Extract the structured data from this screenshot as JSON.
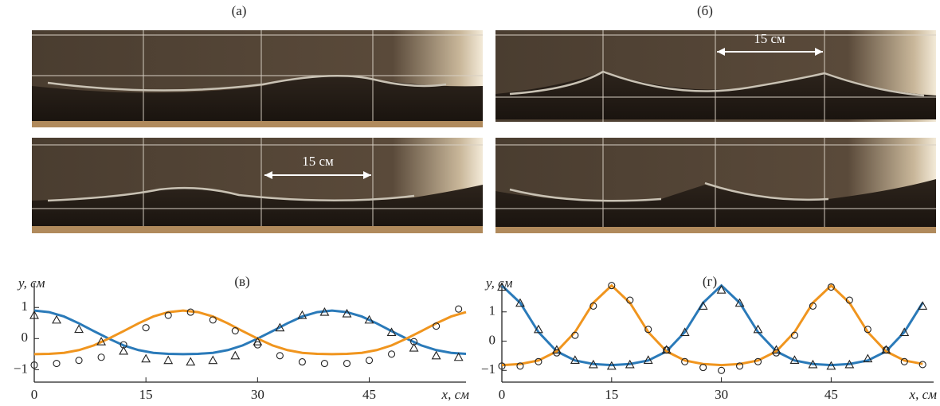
{
  "panels": [
    {
      "label": "(а)",
      "scale_label": "15 см"
    },
    {
      "label": "(б)",
      "scale_label": "15 см"
    }
  ],
  "chart_data": [
    {
      "type": "line",
      "title": "(в)",
      "y_label": "y, см",
      "x_label": "x, см",
      "xlim": [
        0,
        58
      ],
      "ylim": [
        -1.4,
        1.8
      ],
      "xticks": [
        0,
        15,
        30,
        45
      ],
      "yticks": [
        {
          "value": -1,
          "label": "−1"
        },
        0,
        1
      ],
      "series": [
        {
          "style": "line",
          "color": "#2a7ab9",
          "x": [
            0,
            2,
            4,
            6,
            8,
            10,
            12,
            14,
            16,
            18,
            20,
            22,
            24,
            26,
            28,
            30,
            32,
            34,
            36,
            38,
            40,
            42,
            44,
            46,
            48,
            50,
            52,
            54,
            56,
            58
          ],
          "values": [
            0.9,
            0.85,
            0.71,
            0.49,
            0.24,
            0,
            -0.22,
            -0.37,
            -0.46,
            -0.49,
            -0.5,
            -0.49,
            -0.46,
            -0.37,
            -0.22,
            0,
            0.24,
            0.49,
            0.71,
            0.85,
            0.9,
            0.85,
            0.71,
            0.49,
            0.24,
            0,
            -0.22,
            -0.37,
            -0.46,
            -0.49
          ]
        },
        {
          "style": "line",
          "color": "#f0951e",
          "x": [
            0,
            2,
            4,
            6,
            8,
            10,
            12,
            14,
            16,
            18,
            20,
            22,
            24,
            26,
            28,
            30,
            32,
            34,
            36,
            38,
            40,
            42,
            44,
            46,
            48,
            50,
            52,
            54,
            56,
            58
          ],
          "values": [
            -0.5,
            -0.49,
            -0.46,
            -0.37,
            -0.22,
            0,
            0.24,
            0.49,
            0.71,
            0.85,
            0.9,
            0.85,
            0.71,
            0.49,
            0.24,
            0,
            -0.22,
            -0.37,
            -0.46,
            -0.49,
            -0.5,
            -0.49,
            -0.46,
            -0.37,
            -0.22,
            0,
            0.24,
            0.49,
            0.71,
            0.85
          ]
        },
        {
          "style": "circle",
          "color": "#222222",
          "x": [
            0,
            3,
            6,
            9,
            12,
            15,
            18,
            21,
            24,
            27,
            30,
            33,
            36,
            39,
            42,
            45,
            48,
            51,
            54,
            57
          ],
          "values": [
            -0.85,
            -0.8,
            -0.7,
            -0.6,
            -0.2,
            0.35,
            0.75,
            0.85,
            0.6,
            0.25,
            -0.2,
            -0.55,
            -0.75,
            -0.8,
            -0.8,
            -0.7,
            -0.5,
            -0.1,
            0.4,
            0.95
          ]
        },
        {
          "style": "triangle",
          "color": "#222222",
          "x": [
            0,
            3,
            6,
            9,
            12,
            15,
            18,
            21,
            24,
            27,
            30,
            33,
            36,
            39,
            42,
            45,
            48,
            51,
            54,
            57
          ],
          "values": [
            0.75,
            0.6,
            0.3,
            -0.1,
            -0.4,
            -0.65,
            -0.7,
            -0.75,
            -0.7,
            -0.55,
            -0.1,
            0.35,
            0.75,
            0.85,
            0.8,
            0.6,
            0.2,
            -0.3,
            -0.55,
            -0.6
          ]
        }
      ]
    },
    {
      "type": "line",
      "title": "(г)",
      "y_label": "y, см",
      "x_label": "x, см",
      "xlim": [
        0,
        59
      ],
      "ylim": [
        -1.4,
        2.0
      ],
      "xticks": [
        0,
        15,
        30,
        45
      ],
      "yticks": [
        {
          "value": -1,
          "label": "−1"
        },
        0,
        1
      ],
      "series": [
        {
          "style": "line",
          "color": "#2a7ab9",
          "x": [
            0,
            2.5,
            5,
            7.5,
            10,
            12.5,
            15,
            17.5,
            20,
            22.5,
            25,
            27.5,
            30,
            32.5,
            35,
            37.5,
            40,
            42.5,
            45,
            47.5,
            50,
            52.5,
            55,
            57.5
          ],
          "values": [
            1.9,
            1.31,
            0.31,
            -0.35,
            -0.66,
            -0.78,
            -0.82,
            -0.78,
            -0.66,
            -0.35,
            0.31,
            1.31,
            1.9,
            1.31,
            0.31,
            -0.35,
            -0.66,
            -0.78,
            -0.82,
            -0.78,
            -0.66,
            -0.35,
            0.31,
            1.31
          ]
        },
        {
          "style": "line",
          "color": "#f0951e",
          "x": [
            0,
            2.5,
            5,
            7.5,
            10,
            12.5,
            15,
            17.5,
            20,
            22.5,
            25,
            27.5,
            30,
            32.5,
            35,
            37.5,
            40,
            42.5,
            45,
            47.5,
            50,
            52.5,
            55,
            57.5
          ],
          "values": [
            -0.82,
            -0.78,
            -0.66,
            -0.35,
            0.31,
            1.31,
            1.9,
            1.31,
            0.31,
            -0.35,
            -0.66,
            -0.78,
            -0.82,
            -0.78,
            -0.66,
            -0.35,
            0.31,
            1.31,
            1.9,
            1.31,
            0.31,
            -0.35,
            -0.66,
            -0.78
          ]
        },
        {
          "style": "circle",
          "color": "#222222",
          "x": [
            0,
            2.5,
            5,
            7.5,
            10,
            12.5,
            15,
            17.5,
            20,
            22.5,
            25,
            27.5,
            30,
            32.5,
            35,
            37.5,
            40,
            42.5,
            45,
            47.5,
            50,
            52.5,
            55,
            57.5
          ],
          "values": [
            -0.85,
            -0.85,
            -0.7,
            -0.4,
            0.2,
            1.2,
            1.9,
            1.4,
            0.4,
            -0.3,
            -0.7,
            -0.9,
            -1.0,
            -0.85,
            -0.7,
            -0.4,
            0.2,
            1.2,
            1.85,
            1.4,
            0.4,
            -0.3,
            -0.7,
            -0.8
          ]
        },
        {
          "style": "triangle",
          "color": "#222222",
          "x": [
            0,
            2.5,
            5,
            7.5,
            10,
            12.5,
            15,
            17.5,
            20,
            22.5,
            25,
            27.5,
            30,
            32.5,
            35,
            37.5,
            40,
            42.5,
            45,
            47.5,
            50,
            52.5,
            55,
            57.5
          ],
          "values": [
            1.85,
            1.3,
            0.4,
            -0.3,
            -0.65,
            -0.8,
            -0.85,
            -0.8,
            -0.65,
            -0.3,
            0.3,
            1.2,
            1.75,
            1.3,
            0.4,
            -0.3,
            -0.65,
            -0.8,
            -0.85,
            -0.8,
            -0.6,
            -0.3,
            0.3,
            1.2
          ]
        }
      ]
    }
  ]
}
